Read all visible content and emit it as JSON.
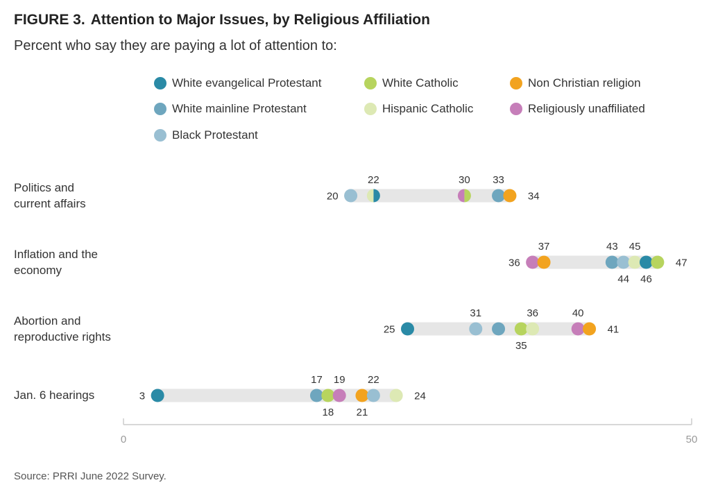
{
  "figure": {
    "number": "FIGURE 3.",
    "title": "Attention to Major Issues, by Religious Affiliation",
    "subtitle": "Percent who say they are paying a lot of attention to:",
    "source": "Source: PRRI June 2022 Survey."
  },
  "legend": [
    {
      "key": "wep",
      "label": "White evangelical Protestant",
      "color": "#2a8aa6"
    },
    {
      "key": "wc",
      "label": "White Catholic",
      "color": "#b7d45e"
    },
    {
      "key": "ncr",
      "label": "Non Christian religion",
      "color": "#f2a31f"
    },
    {
      "key": "wmp",
      "label": "White mainline Protestant",
      "color": "#6ea6be"
    },
    {
      "key": "hc",
      "label": "Hispanic Catholic",
      "color": "#dde9b4"
    },
    {
      "key": "ru",
      "label": "Religiously unaffiliated",
      "color": "#c67eb9"
    },
    {
      "key": "bp",
      "label": "Black Protestant",
      "color": "#99bfd2"
    }
  ],
  "chart_data": {
    "type": "dot-range",
    "xlim": [
      0,
      50
    ],
    "x_tick_labels": [
      "0",
      "50"
    ],
    "categories": [
      "Politics and current affairs",
      "Inflation and the economy",
      "Abortion and reproductive rights",
      "Jan. 6 hearings"
    ],
    "row_labels": [
      [
        "Politics and",
        "current affairs"
      ],
      [
        "Inflation and the",
        "economy"
      ],
      [
        "Abortion and",
        "reproductive rights"
      ],
      [
        "Jan. 6 hearings"
      ]
    ],
    "series": [
      {
        "key": "wep",
        "name": "White evangelical Protestant",
        "values": [
          22,
          46,
          25,
          3
        ]
      },
      {
        "key": "wmp",
        "name": "White mainline Protestant",
        "values": [
          33,
          43,
          33,
          17
        ]
      },
      {
        "key": "bp",
        "name": "Black Protestant",
        "values": [
          20,
          44,
          31,
          22
        ]
      },
      {
        "key": "wc",
        "name": "White Catholic",
        "values": [
          30,
          47,
          35,
          18
        ]
      },
      {
        "key": "hc",
        "name": "Hispanic Catholic",
        "values": [
          22,
          45,
          36,
          24
        ]
      },
      {
        "key": "ncr",
        "name": "Non Christian religion",
        "values": [
          34,
          37,
          41,
          21
        ]
      },
      {
        "key": "ru",
        "name": "Religiously unaffiliated",
        "values": [
          30,
          36,
          40,
          19
        ]
      }
    ],
    "value_labels": [
      [
        {
          "text": "20",
          "value": 20,
          "pos": "left"
        },
        {
          "text": "22",
          "value": 22,
          "pos": "above"
        },
        {
          "text": "30",
          "value": 30,
          "pos": "above"
        },
        {
          "text": "33",
          "value": 33,
          "pos": "above"
        },
        {
          "text": "34",
          "value": 34,
          "pos": "right"
        }
      ],
      [
        {
          "text": "36",
          "value": 36,
          "pos": "left"
        },
        {
          "text": "37",
          "value": 37,
          "pos": "above"
        },
        {
          "text": "43",
          "value": 43,
          "pos": "above"
        },
        {
          "text": "45",
          "value": 45,
          "pos": "above"
        },
        {
          "text": "44",
          "value": 44,
          "pos": "below"
        },
        {
          "text": "46",
          "value": 46,
          "pos": "below"
        },
        {
          "text": "47",
          "value": 47,
          "pos": "right"
        }
      ],
      [
        {
          "text": "25",
          "value": 25,
          "pos": "left"
        },
        {
          "text": "31",
          "value": 31,
          "pos": "above"
        },
        {
          "text": "36",
          "value": 36,
          "pos": "above"
        },
        {
          "text": "40",
          "value": 40,
          "pos": "above"
        },
        {
          "text": "35",
          "value": 35,
          "pos": "below"
        },
        {
          "text": "41",
          "value": 41,
          "pos": "right"
        }
      ],
      [
        {
          "text": "3",
          "value": 3,
          "pos": "left"
        },
        {
          "text": "17",
          "value": 17,
          "pos": "above"
        },
        {
          "text": "19",
          "value": 19,
          "pos": "above"
        },
        {
          "text": "22",
          "value": 22,
          "pos": "above"
        },
        {
          "text": "18",
          "value": 18,
          "pos": "below"
        },
        {
          "text": "21",
          "value": 21,
          "pos": "below"
        },
        {
          "text": "24",
          "value": 24,
          "pos": "right"
        }
      ]
    ],
    "grid": false,
    "legend_position": "top"
  }
}
